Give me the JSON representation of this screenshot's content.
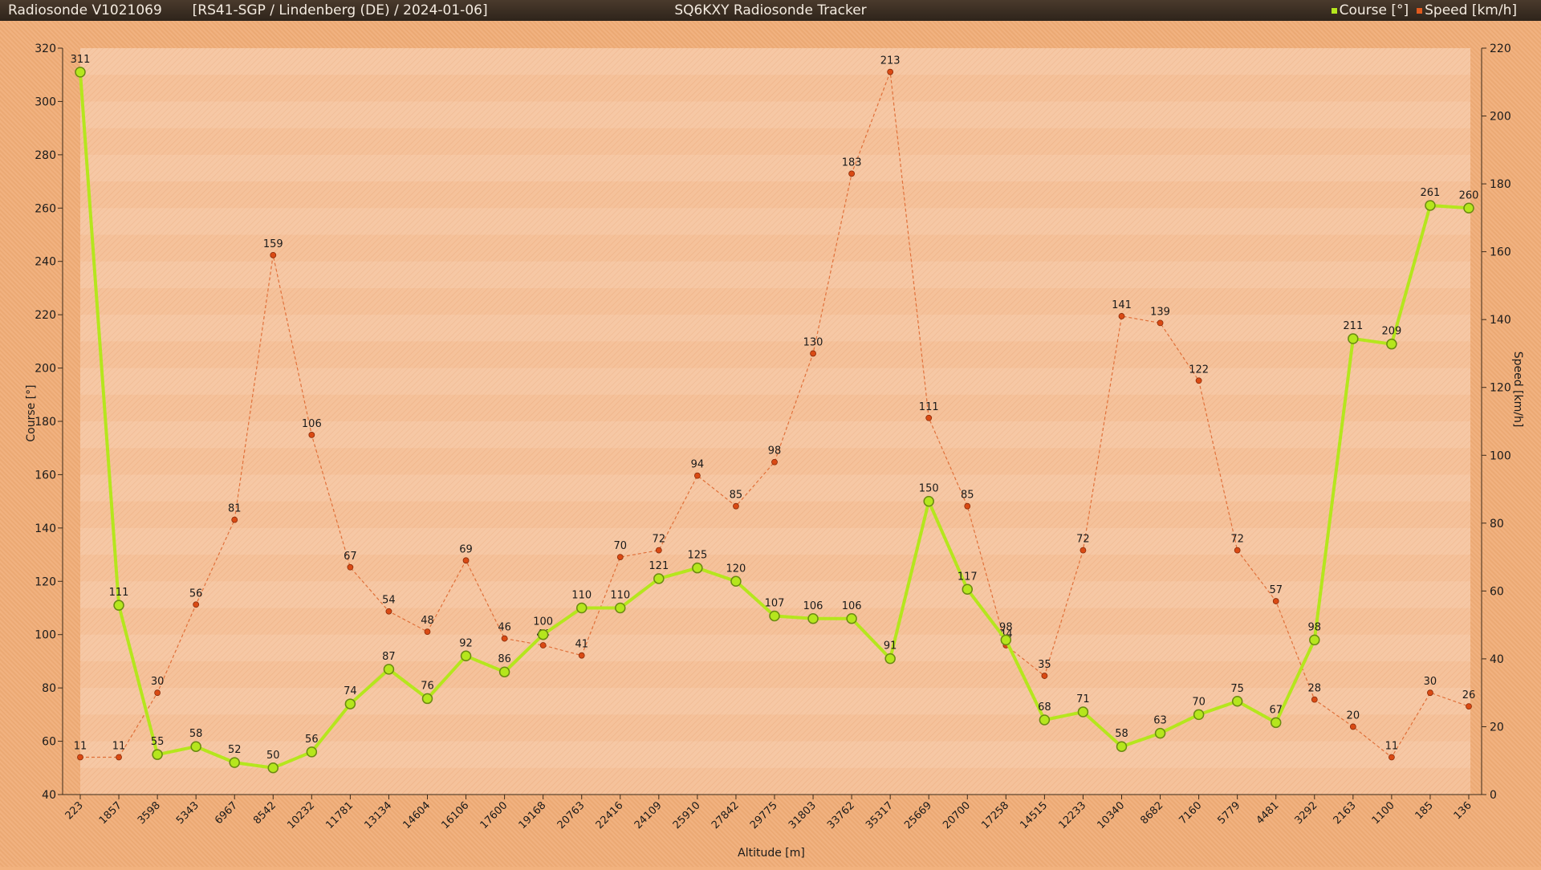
{
  "window": {
    "left_title": "Radiosonde V1021069",
    "left_subtitle": "[RS41-SGP / Lindenberg (DE) / 2024-01-06]",
    "center_title": "SQ6KXY Radiosonde Tracker"
  },
  "legend": [
    {
      "label": "Course [°]",
      "color": "#b5e61d"
    },
    {
      "label": "Speed [km/h]",
      "color": "#e05a1e"
    }
  ],
  "chart_data": {
    "type": "line",
    "xlabel": "Altitude [m]",
    "ylabel_left": "Course [°]",
    "ylabel_right": "Speed [km/h]",
    "ylim_left": [
      40,
      320
    ],
    "ylim_right": [
      0,
      220
    ],
    "yticks_left": [
      40,
      60,
      80,
      100,
      120,
      140,
      160,
      180,
      200,
      220,
      240,
      260,
      280,
      300,
      320
    ],
    "yticks_right": [
      0,
      20,
      40,
      60,
      80,
      100,
      120,
      140,
      160,
      180,
      200,
      220
    ],
    "grid": true,
    "legend_position": "top-right",
    "categories": [
      "223",
      "1857",
      "3598",
      "5343",
      "6967",
      "8542",
      "10232",
      "11781",
      "13134",
      "14604",
      "16106",
      "17600",
      "19168",
      "20763",
      "22416",
      "24109",
      "25910",
      "27842",
      "29775",
      "31803",
      "33762",
      "35317",
      "25669",
      "20700",
      "17258",
      "14515",
      "12233",
      "10340",
      "8682",
      "7160",
      "5779",
      "4481",
      "3292",
      "2163",
      "1100",
      "185",
      "136"
    ],
    "series": [
      {
        "name": "Course [°]",
        "axis": "left",
        "color": "#b5e61d",
        "values": [
          311,
          111,
          55,
          58,
          52,
          50,
          56,
          74,
          87,
          76,
          92,
          86,
          100,
          110,
          110,
          121,
          125,
          120,
          107,
          106,
          106,
          91,
          150,
          117,
          98,
          68,
          71,
          58,
          63,
          70,
          75,
          67,
          98,
          211,
          209,
          261,
          260
        ]
      },
      {
        "name": "Speed [km/h]",
        "axis": "right",
        "color": "#e05a1e",
        "values": [
          11,
          11,
          30,
          56,
          81,
          159,
          106,
          67,
          54,
          48,
          69,
          46,
          44,
          41,
          70,
          72,
          94,
          85,
          98,
          130,
          183,
          213,
          111,
          85,
          44,
          35,
          72,
          141,
          139,
          122,
          72,
          57,
          28,
          20,
          11,
          30,
          26
        ]
      }
    ]
  }
}
